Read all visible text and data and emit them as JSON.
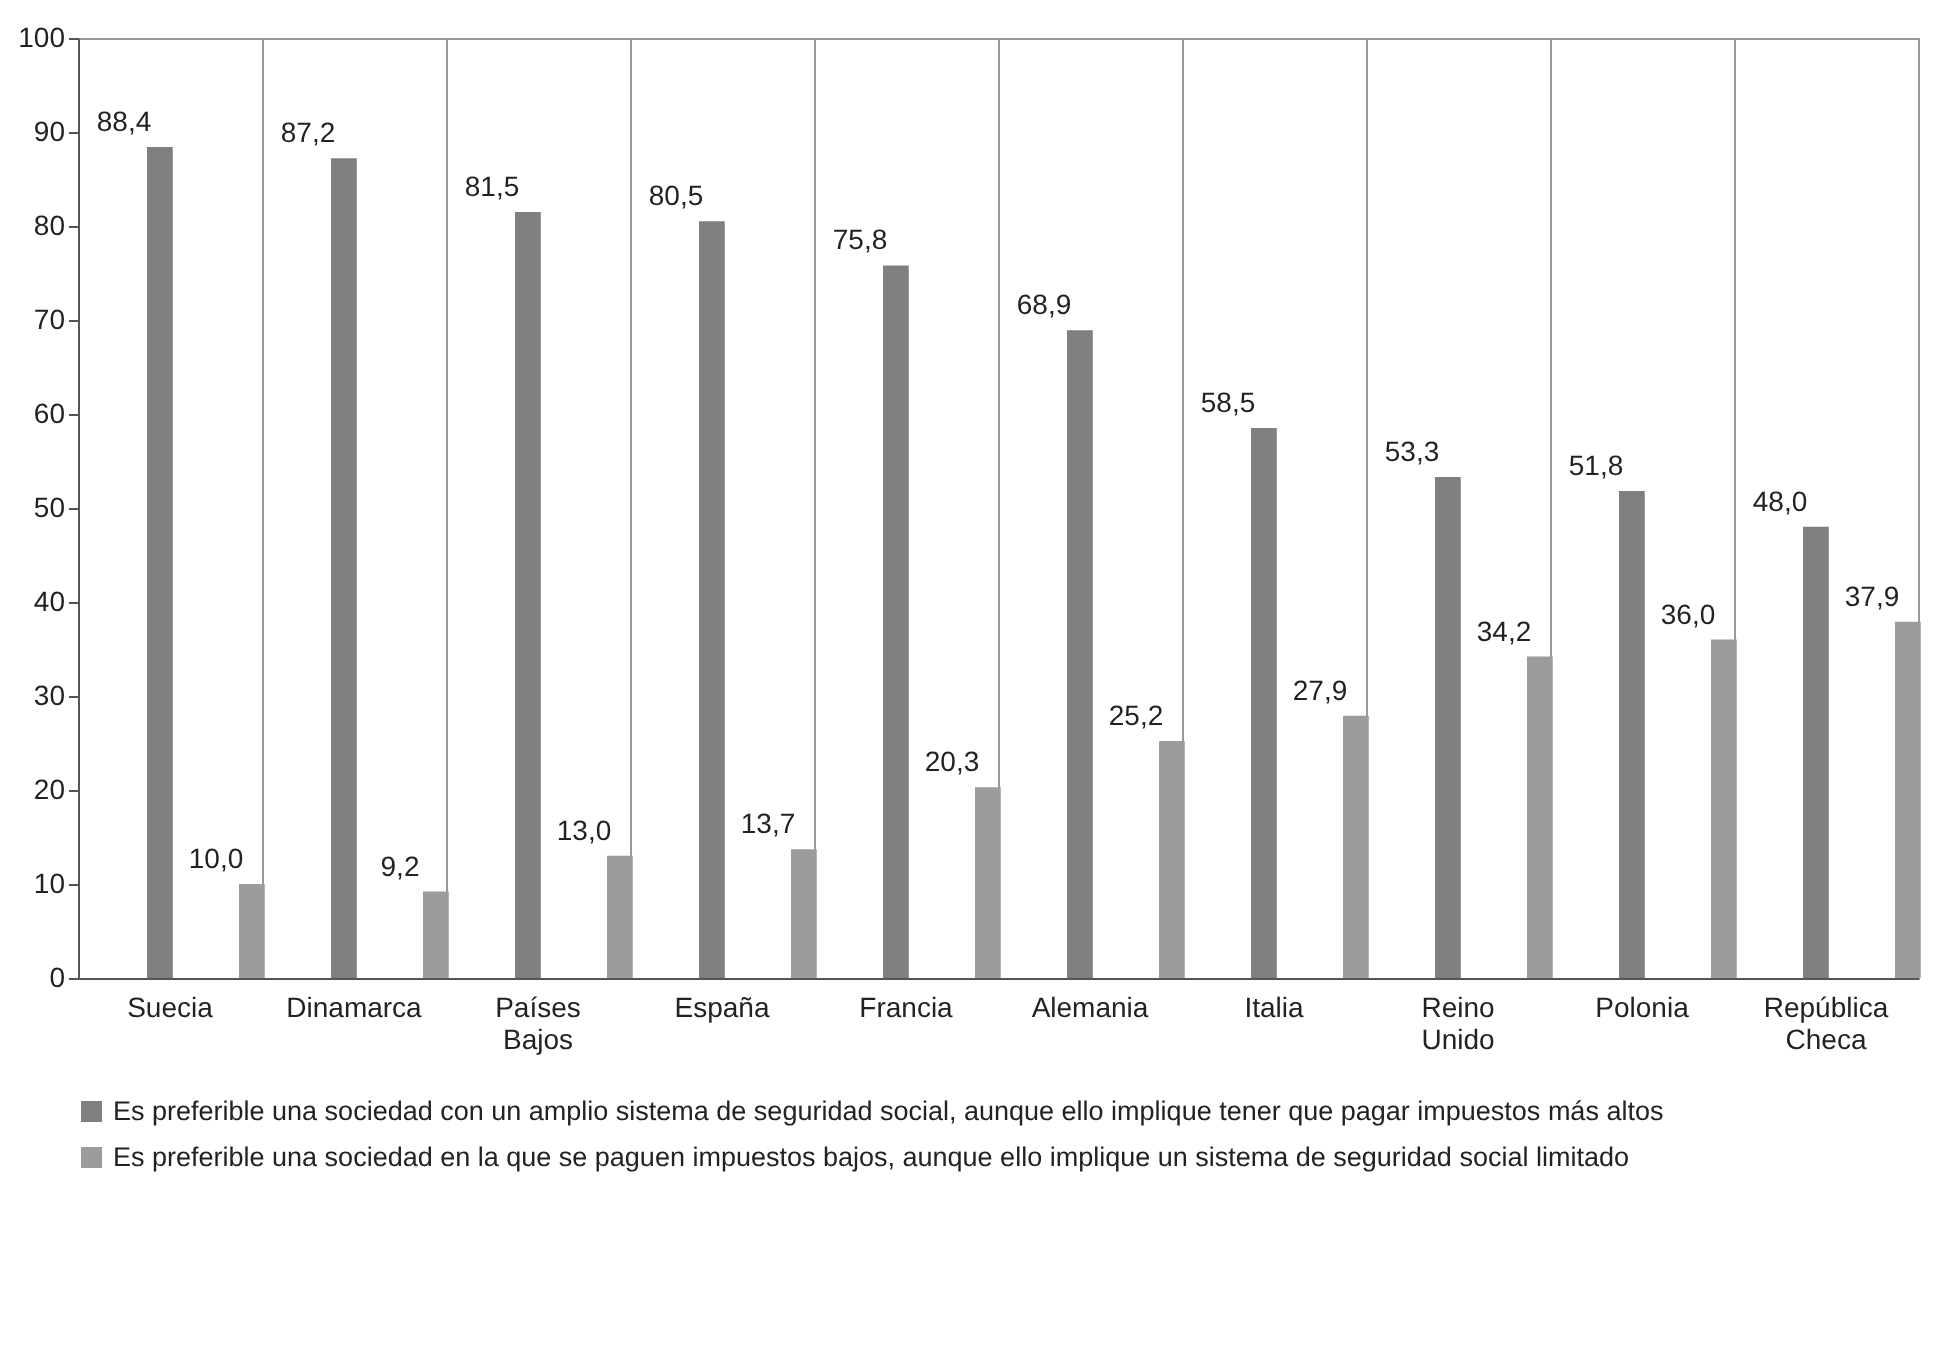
{
  "chart_data": {
    "type": "bar",
    "categories": [
      "Suecia",
      "Dinamarca",
      "Países Bajos",
      "España",
      "Francia",
      "Alemania",
      "Italia",
      "Reino Unido",
      "Polonia",
      "República Checa"
    ],
    "series": [
      {
        "name": "Es preferible una sociedad con un amplio sistema de seguridad social, aunque ello implique tener que pagar impuestos más altos",
        "color": "#7f7f7f",
        "values": [
          88.4,
          87.2,
          81.5,
          80.5,
          75.8,
          68.9,
          58.5,
          53.3,
          51.8,
          48.0
        ]
      },
      {
        "name": "Es preferible una sociedad en la que se paguen impuestos bajos, aunque ello implique un sistema de seguridad social limitado",
        "color": "#9c9c9c",
        "values": [
          10.0,
          9.2,
          13.0,
          13.7,
          20.3,
          25.2,
          27.9,
          34.2,
          36.0,
          37.9
        ]
      }
    ],
    "value_labels": [
      [
        "88,4",
        "87,2",
        "81,5",
        "80,5",
        "75,8",
        "68,9",
        "58,5",
        "53,3",
        "51,8",
        "48,0"
      ],
      [
        "10,0",
        "9,2",
        "13,0",
        "13,7",
        "20,3",
        "25,2",
        "27,9",
        "34,2",
        "36,0",
        "37,9"
      ]
    ],
    "ylim": [
      0,
      100
    ],
    "yticks": [
      0,
      10,
      20,
      30,
      40,
      50,
      60,
      70,
      80,
      90,
      100
    ],
    "grid": "x",
    "legend": "bottom"
  }
}
